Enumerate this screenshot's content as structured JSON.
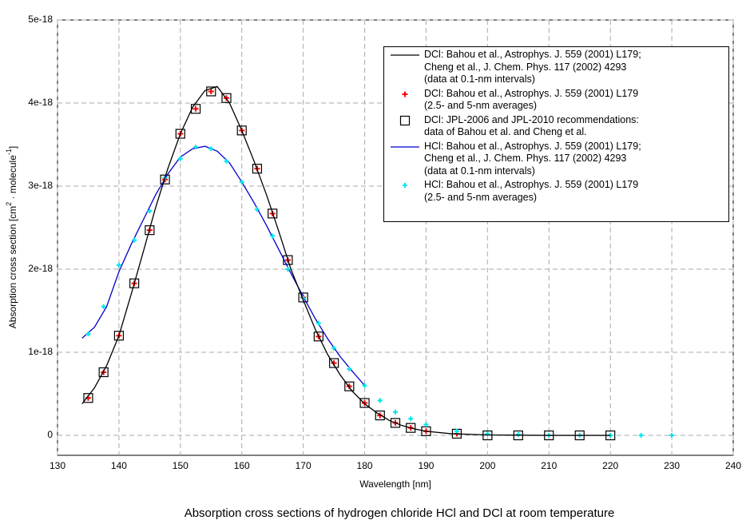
{
  "chart_data": {
    "type": "line",
    "title": "Absorption cross sections of hydrogen chloride HCl and DCl at room temperature",
    "x_label": "Wavelength [nm]",
    "y_label": [
      "Absorption cross section [cm",
      "2",
      " · molecule",
      "-1",
      "]"
    ],
    "xlim": [
      130,
      240
    ],
    "xticks": [
      130,
      140,
      150,
      160,
      170,
      180,
      190,
      200,
      210,
      220,
      230,
      240
    ],
    "ylim": [
      -2.4e-19,
      5e-18
    ],
    "yticks": [
      0,
      1e-18,
      2e-18,
      3e-18,
      4e-18,
      5e-18
    ],
    "grid": true,
    "series": [
      {
        "name": "DCl: Bahou et al., Astrophys. J. 559 (2001)  L179;\nCheng et al., J. Chem. Phys. 117 (2002) 4293\n(data at 0.1-nm intervals)",
        "color": "#000000",
        "style": "line",
        "x": [
          134,
          136,
          138,
          140,
          142,
          144,
          146,
          148,
          150,
          152,
          154,
          156,
          158,
          160,
          162,
          164,
          166,
          168,
          170,
          172,
          174,
          176,
          178,
          180,
          182,
          184,
          186,
          188,
          190,
          194,
          200,
          210,
          220
        ],
        "values": [
          3.8e-19,
          5.7e-19,
          8.4e-19,
          1.2e-18,
          1.7e-18,
          2.22e-18,
          2.75e-18,
          3.22e-18,
          3.63e-18,
          3.95e-18,
          4.15e-18,
          4.2e-18,
          4e-18,
          3.67e-18,
          3.3e-18,
          2.9e-18,
          2.46e-18,
          2e-18,
          1.63e-18,
          1.27e-18,
          9.7e-19,
          7.3e-19,
          5.3e-19,
          3.8e-19,
          2.7e-19,
          1.8e-19,
          1.2e-19,
          8e-20,
          5e-20,
          2e-20,
          5e-21,
          0,
          0
        ]
      },
      {
        "name": "DCl: Bahou et al., Astrophys. J. 559 (2001)  L179\n(2.5- and 5-nm averages)",
        "color": "#ff0000",
        "style": "plus",
        "x": [
          135,
          137.5,
          140,
          142.5,
          145,
          147.5,
          150,
          152.5,
          155,
          157.5,
          160,
          162.5,
          165,
          167.5,
          170,
          172.5,
          175,
          177.5,
          180,
          182.5,
          185,
          187.5,
          190,
          195
        ],
        "values": [
          4.5e-19,
          7.6e-19,
          1.2e-18,
          1.83e-18,
          2.47e-18,
          3.08e-18,
          3.63e-18,
          3.93e-18,
          4.14e-18,
          4.06e-18,
          3.67e-18,
          3.21e-18,
          2.67e-18,
          2.11e-18,
          1.66e-18,
          1.19e-18,
          8.7e-19,
          5.9e-19,
          3.9e-19,
          2.4e-19,
          1.5e-19,
          9e-20,
          5e-20,
          2e-20
        ]
      },
      {
        "name": "DCl: JPL-2006 and JPL-2010 recommendations:\ndata of Bahou et al. and Cheng et al.",
        "color": "#000000",
        "style": "square",
        "x": [
          135,
          137.5,
          140,
          142.5,
          145,
          147.5,
          150,
          152.5,
          155,
          157.5,
          160,
          162.5,
          165,
          167.5,
          170,
          172.5,
          175,
          177.5,
          180,
          182.5,
          185,
          187.5,
          190,
          195,
          200,
          205,
          210,
          215,
          220
        ],
        "values": [
          4.5e-19,
          7.6e-19,
          1.2e-18,
          1.83e-18,
          2.47e-18,
          3.08e-18,
          3.63e-18,
          3.93e-18,
          4.14e-18,
          4.06e-18,
          3.67e-18,
          3.21e-18,
          2.67e-18,
          2.11e-18,
          1.66e-18,
          1.19e-18,
          8.7e-19,
          5.9e-19,
          3.9e-19,
          2.4e-19,
          1.5e-19,
          9e-20,
          5e-20,
          2e-20,
          0,
          0,
          0,
          0,
          0
        ]
      },
      {
        "name": "HCl: Bahou et al., Astrophys. J. 559 (2001)  L179;\nCheng et al., J. Chem. Phys. 117 (2002) 4293\n(data at 0.1-nm intervals)",
        "color": "#0000cc",
        "style": "line",
        "x": [
          134,
          136,
          138,
          140,
          142,
          144,
          146,
          148,
          150,
          152,
          154,
          156,
          158,
          160,
          162,
          164,
          166,
          168,
          170,
          172,
          174,
          176,
          178,
          180
        ],
        "values": [
          1.17e-18,
          1.3e-18,
          1.55e-18,
          1.97e-18,
          2.3e-18,
          2.6e-18,
          2.9e-18,
          3.15e-18,
          3.35e-18,
          3.45e-18,
          3.48e-18,
          3.42e-18,
          3.28e-18,
          3.05e-18,
          2.8e-18,
          2.53e-18,
          2.24e-18,
          1.95e-18,
          1.67e-18,
          1.4e-18,
          1.16e-18,
          9.5e-19,
          7.7e-19,
          6e-19
        ]
      },
      {
        "name": "HCl: Bahou et al., Astrophys. J. 559 (2001)  L179\n(2.5- and 5-nm averages)",
        "color": "#00e5ee",
        "style": "plus",
        "x": [
          135,
          137.5,
          140,
          142.5,
          145,
          147.5,
          150,
          152.5,
          155,
          157.5,
          160,
          162.5,
          165,
          167.5,
          170,
          172.5,
          175,
          177.5,
          180,
          182.5,
          185,
          187.5,
          190,
          195,
          200,
          205,
          210,
          215,
          220,
          225,
          230
        ],
        "values": [
          1.22e-18,
          1.55e-18,
          2.05e-18,
          2.35e-18,
          2.7e-18,
          3.1e-18,
          3.33e-18,
          3.47e-18,
          3.45e-18,
          3.3e-18,
          3.05e-18,
          2.72e-18,
          2.4e-18,
          2e-18,
          1.65e-18,
          1.35e-18,
          1.05e-18,
          8e-19,
          6e-19,
          4.2e-19,
          2.8e-19,
          2e-19,
          1.3e-19,
          5e-20,
          2e-20,
          1e-20,
          0,
          0,
          0,
          0,
          0
        ]
      }
    ]
  }
}
